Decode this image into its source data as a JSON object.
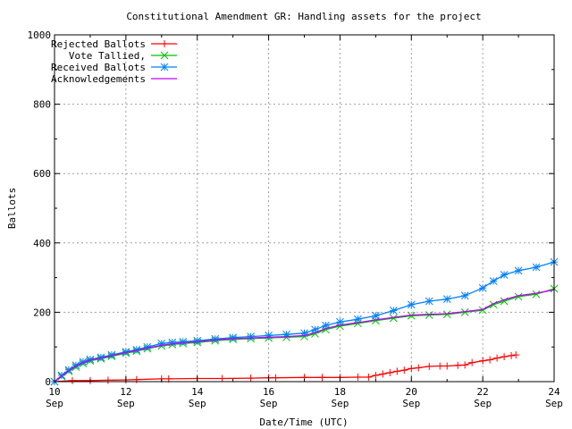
{
  "chart_data": {
    "type": "line",
    "title": "Constitutional Amendment GR: Handling assets for the project",
    "xlabel": "Date/Time (UTC)",
    "ylabel": "Ballots",
    "xlim": [
      10,
      24
    ],
    "ylim": [
      0,
      1000
    ],
    "x_unit": "day of Sep",
    "x_ticks": [
      {
        "day": "10",
        "month": "Sep"
      },
      {
        "day": "12",
        "month": "Sep"
      },
      {
        "day": "14",
        "month": "Sep"
      },
      {
        "day": "16",
        "month": "Sep"
      },
      {
        "day": "18",
        "month": "Sep"
      },
      {
        "day": "20",
        "month": "Sep"
      },
      {
        "day": "22",
        "month": "Sep"
      },
      {
        "day": "24",
        "month": "Sep"
      }
    ],
    "y_ticks": [
      "0",
      "200",
      "400",
      "600",
      "800",
      "1000"
    ],
    "grid": true,
    "legend_placement": "top-left",
    "series": [
      {
        "name": "Rejected Ballots",
        "color": "#ff0000",
        "marker": "plus",
        "x": [
          10.0,
          10.5,
          11.0,
          11.5,
          12.0,
          12.3,
          13.0,
          13.2,
          14.0,
          14.7,
          15.5,
          16.0,
          16.2,
          17.0,
          17.5,
          18.0,
          18.5,
          18.8,
          19.0,
          19.2,
          19.4,
          19.6,
          19.8,
          20.0,
          20.2,
          20.5,
          20.8,
          21.0,
          21.3,
          21.5,
          21.7,
          22.0,
          22.2,
          22.4,
          22.6,
          22.8,
          22.93
        ],
        "y": [
          0,
          3,
          3,
          4,
          5,
          6,
          8,
          8,
          9,
          9,
          10,
          11,
          11,
          12,
          12,
          12,
          13,
          13,
          18,
          22,
          26,
          30,
          33,
          38,
          40,
          44,
          45,
          45,
          47,
          48,
          55,
          60,
          63,
          68,
          72,
          75,
          77
        ]
      },
      {
        "name": "Vote Tallied,",
        "color": "#00c000",
        "marker": "x",
        "x": [
          10.0,
          10.2,
          10.4,
          10.6,
          10.8,
          11.0,
          11.3,
          11.6,
          12.0,
          12.3,
          12.6,
          13.0,
          13.3,
          13.6,
          14.0,
          14.5,
          15.0,
          15.5,
          16.0,
          16.5,
          17.0,
          17.3,
          17.6,
          18.0,
          18.5,
          19.0,
          19.5,
          20.0,
          20.5,
          21.0,
          21.5,
          22.0,
          22.3,
          22.6,
          23.0,
          23.5,
          24.0
        ],
        "y": [
          0,
          15,
          30,
          42,
          52,
          60,
          66,
          73,
          82,
          88,
          95,
          103,
          107,
          110,
          113,
          118,
          122,
          124,
          126,
          128,
          130,
          138,
          150,
          160,
          168,
          176,
          183,
          190,
          192,
          194,
          200,
          206,
          222,
          232,
          245,
          252,
          268
        ]
      },
      {
        "name": "Received Ballots",
        "color": "#0080ff",
        "marker": "star",
        "x": [
          10.0,
          10.2,
          10.4,
          10.6,
          10.8,
          11.0,
          11.3,
          11.6,
          12.0,
          12.3,
          12.6,
          13.0,
          13.3,
          13.6,
          14.0,
          14.5,
          15.0,
          15.5,
          16.0,
          16.5,
          17.0,
          17.3,
          17.6,
          18.0,
          18.5,
          19.0,
          19.5,
          20.0,
          20.5,
          21.0,
          21.5,
          22.0,
          22.3,
          22.6,
          23.0,
          23.5,
          24.0
        ],
        "y": [
          0,
          18,
          34,
          47,
          57,
          64,
          70,
          77,
          86,
          92,
          100,
          110,
          113,
          115,
          118,
          123,
          127,
          130,
          133,
          136,
          140,
          150,
          162,
          172,
          180,
          190,
          205,
          222,
          232,
          238,
          248,
          270,
          290,
          308,
          320,
          330,
          345
        ]
      },
      {
        "name": "Acknowledgements",
        "color": "#c000ff",
        "marker": "none",
        "x": [
          10.0,
          10.2,
          10.4,
          10.6,
          10.8,
          11.0,
          11.3,
          11.6,
          12.0,
          12.3,
          12.6,
          13.0,
          13.3,
          13.6,
          14.0,
          14.5,
          15.0,
          15.5,
          16.0,
          16.5,
          17.0,
          17.3,
          17.6,
          18.0,
          18.5,
          19.0,
          19.5,
          20.0,
          20.5,
          21.0,
          21.5,
          22.0,
          22.3,
          22.6,
          23.0,
          23.5,
          24.0
        ],
        "y": [
          0,
          16,
          32,
          45,
          55,
          62,
          68,
          75,
          84,
          90,
          97,
          105,
          109,
          112,
          115,
          120,
          124,
          126,
          128,
          130,
          133,
          141,
          153,
          163,
          170,
          178,
          185,
          192,
          194,
          196,
          202,
          208,
          225,
          236,
          248,
          255,
          265
        ]
      }
    ]
  }
}
